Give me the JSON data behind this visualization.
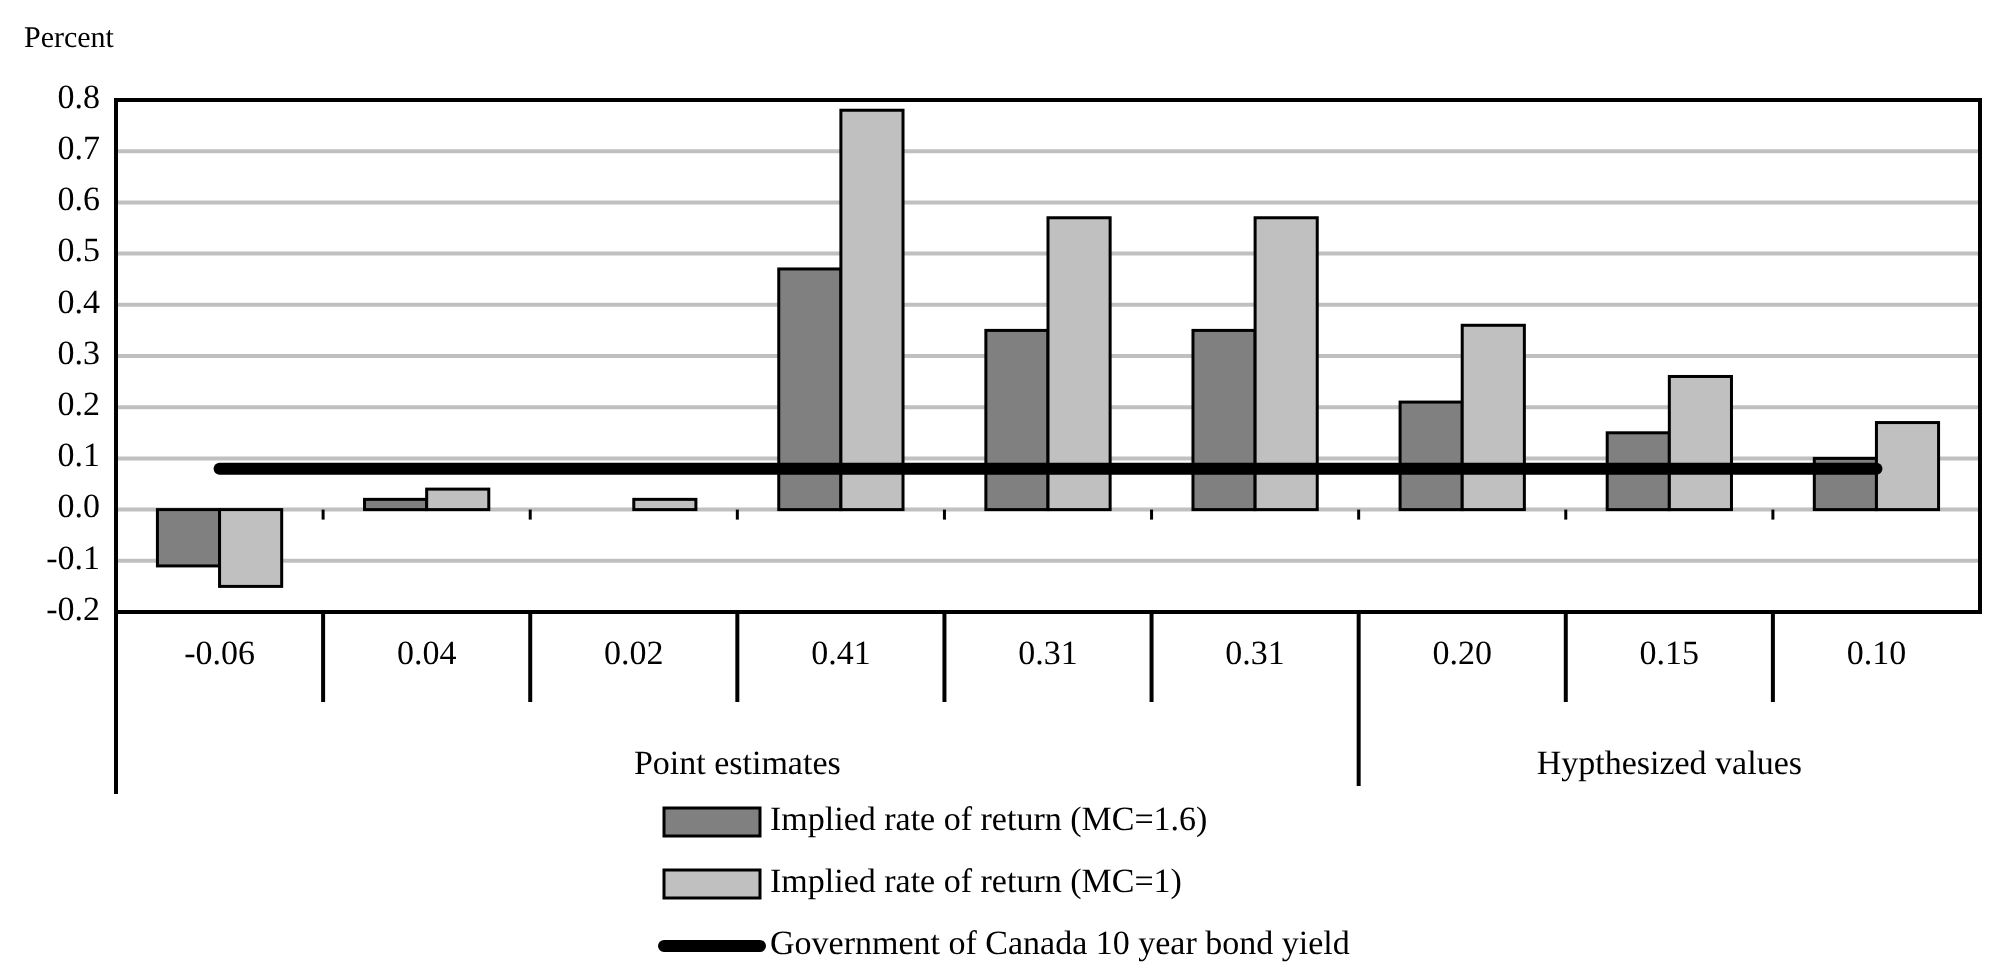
{
  "chart_data": {
    "type": "bar",
    "ylabel": "Percent",
    "categories": [
      "-0.06",
      "0.04",
      "0.02",
      "0.41",
      "0.31",
      "0.31",
      "0.20",
      "0.15",
      "0.10"
    ],
    "series": [
      {
        "name": "Implied rate of return (MC=1.6)",
        "color": "#808080",
        "values": [
          -0.11,
          0.02,
          0,
          0.47,
          0.35,
          0.35,
          0.21,
          0.15,
          0.1
        ]
      },
      {
        "name": "Implied rate of return (MC=1)",
        "color": "#c0c0c0",
        "values": [
          -0.15,
          0.04,
          0.02,
          0.78,
          0.57,
          0.57,
          0.36,
          0.26,
          0.17
        ]
      },
      {
        "name": "Government of Canada 10 year bond yield",
        "color": "#000000",
        "type": "line",
        "values": [
          0.08,
          0.08,
          0.08,
          0.08,
          0.08,
          0.08,
          0.08,
          0.08,
          0.08
        ]
      }
    ],
    "ylim": [
      -0.2,
      0.8
    ],
    "yticks": [
      {
        "value": -0.2,
        "label": "-0.2"
      },
      {
        "value": -0.1,
        "label": "-0.1"
      },
      {
        "value": 0,
        "label": "0.0"
      },
      {
        "value": 0.1,
        "label": "0.1"
      },
      {
        "value": 0.2,
        "label": "0.2"
      },
      {
        "value": 0.3,
        "label": "0.3"
      },
      {
        "value": 0.4,
        "label": "0.4"
      },
      {
        "value": 0.5,
        "label": "0.5"
      },
      {
        "value": 0.6,
        "label": "0.6"
      },
      {
        "value": 0.7,
        "label": "0.7"
      },
      {
        "value": 0.8,
        "label": "0.8"
      }
    ],
    "grid": "y",
    "legend": "bottom",
    "marker": "none",
    "line_style": "solid",
    "annotations": [
      "Point estimates",
      "Hypthesized values"
    ]
  }
}
